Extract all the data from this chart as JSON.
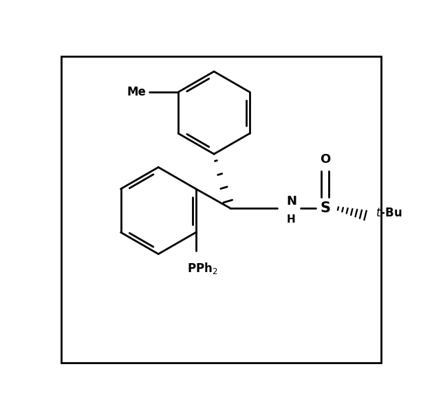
{
  "background_color": "#ffffff",
  "border_color": "#000000",
  "line_width": 2.0,
  "figure_size": [
    6.28,
    6.04
  ],
  "dpi": 100,
  "xlim": [
    0,
    6.28
  ],
  "ylim": [
    0,
    6.04
  ]
}
